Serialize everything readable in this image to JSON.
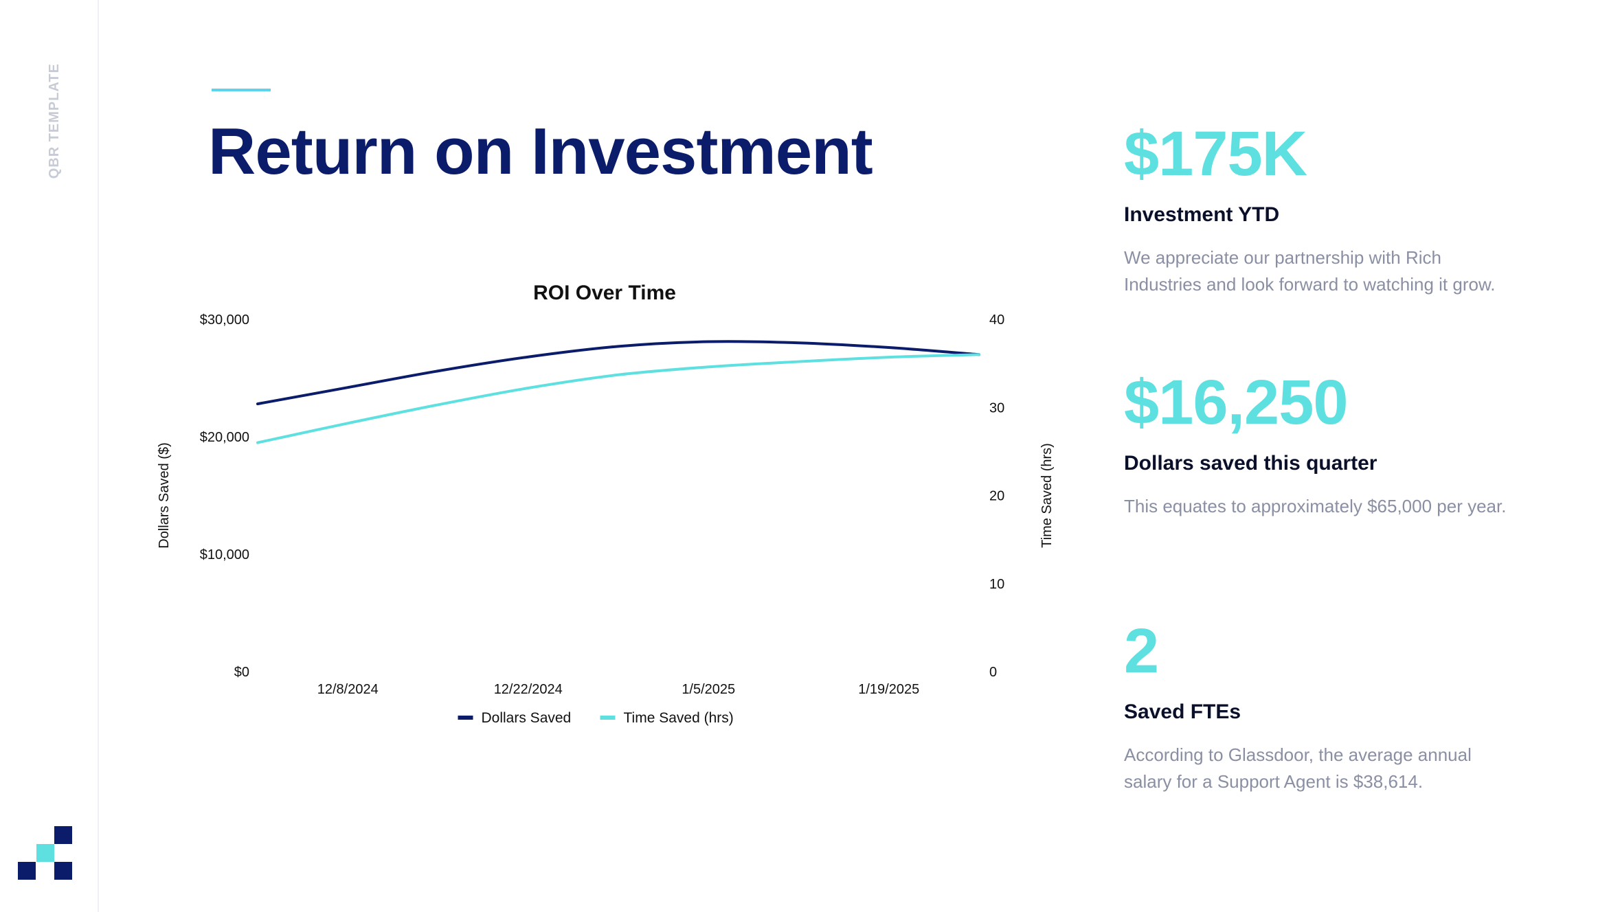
{
  "sidebar": {
    "label": "QBR TEMPLATE"
  },
  "colors": {
    "navy": "#0b1c6b",
    "cyan": "#5dd3ee",
    "teal": "#5ee0e0",
    "muted": "#8a8fa3"
  },
  "title": "Return on Investment",
  "chart_data": {
    "type": "line",
    "title": "ROI Over Time",
    "x": [
      "12/1/2024",
      "12/8/2024",
      "12/15/2024",
      "12/22/2024",
      "12/29/2024",
      "1/5/2025",
      "1/12/2025",
      "1/19/2025",
      "1/26/2025"
    ],
    "x_tick_labels": [
      "12/8/2024",
      "12/22/2024",
      "1/5/2025",
      "1/19/2025"
    ],
    "ylabel": "Dollars Saved ($)",
    "y2label": "Time Saved (hrs)",
    "ylim": [
      0,
      30000
    ],
    "y2lim": [
      0,
      40
    ],
    "y_ticks": [
      "$0",
      "$10,000",
      "$20,000",
      "$30,000"
    ],
    "y2_ticks": [
      "0",
      "10",
      "20",
      "30",
      "40"
    ],
    "legend": "bottom",
    "grid": false,
    "series": [
      {
        "name": "Dollars Saved",
        "axis": "left",
        "color": "#0b1c6b",
        "values": [
          22800,
          24200,
          25600,
          26800,
          27700,
          28100,
          28000,
          27600,
          27000
        ]
      },
      {
        "name": "Time Saved (hrs)",
        "axis": "right",
        "color": "#5ee0e0",
        "values": [
          26.0,
          28.2,
          30.3,
          32.2,
          33.7,
          34.6,
          35.2,
          35.7,
          36.0
        ]
      }
    ]
  },
  "kpis": [
    {
      "value": "$175K",
      "label": "Investment YTD",
      "desc": "We appreciate our partnership with Rich Industries and look forward to watching it grow."
    },
    {
      "value": "$16,250",
      "label": "Dollars saved this quarter",
      "desc": "This equates to approximately $65,000 per year."
    },
    {
      "value": "2",
      "label": "Saved FTEs",
      "desc": "According to Glassdoor, the average annual salary for a Support Agent is $38,614."
    }
  ]
}
